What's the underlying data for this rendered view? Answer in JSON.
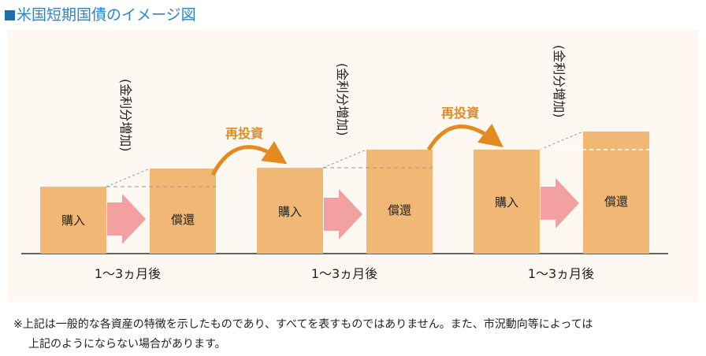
{
  "title": "米国短期国債のイメージ図",
  "diagram": {
    "purchase_label": "購入",
    "redemption_label": "償還",
    "interest_label": "(金利分増加)",
    "reinvest_label": "再投資",
    "period_label": "1〜3ヵ月後",
    "cycles": 3
  },
  "colors": {
    "title": "#2d86c4",
    "block": "#f0b874",
    "arrow_pink": "#f2a0a0",
    "reinvest_arrow": "#e58a1f",
    "reinvest_text": "#e58a1f",
    "panel": "#fdf9f2"
  },
  "footnote": {
    "line1": "※上記は一般的な各資産の特徴を示したものであり、すべてを表すものではありません。また、市況動向等によっては",
    "line2": "上記のようにならない場合があります。"
  }
}
